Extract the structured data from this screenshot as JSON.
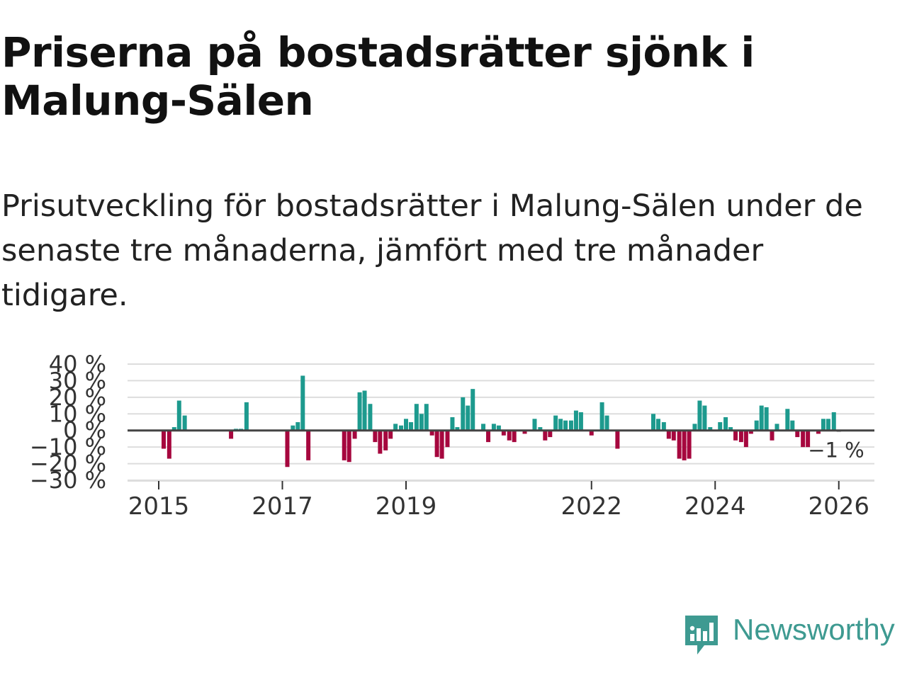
{
  "title": "Priserna på bostadsrätter sjönk i Malung-Sälen",
  "subtitle": "Prisutveckling för bostadsrätter i Malung-Sälen under de senaste tre månaderna, jämfört med tre månader tidigare.",
  "logo": {
    "text": "Newsworthy",
    "color": "#3e9a91"
  },
  "colors": {
    "positive": "#1d9a8e",
    "negative": "#a6073e",
    "grid": "#dddddd",
    "zero_line": "#444444"
  },
  "chart_data": {
    "type": "bar",
    "title": "Priserna på bostadsrätter sjönk i Malung-Sälen",
    "xlabel": "",
    "ylabel": "",
    "ylim": [
      -30,
      40
    ],
    "yticks": [
      40,
      30,
      20,
      10,
      0,
      -10,
      -20,
      -30
    ],
    "ytick_labels": [
      "40 %",
      "30 %",
      "20 %",
      "10 %",
      "0 %",
      "−10 %",
      "−20 %",
      "−30 %"
    ],
    "xticks": [
      2015,
      2017,
      2019,
      2022,
      2024,
      2026
    ],
    "xtick_labels": [
      "2015",
      "2017",
      "2019",
      "2022",
      "2024",
      "2026"
    ],
    "grid": true,
    "last_value_label": "−1 %",
    "series": [
      {
        "name": "Prisutveckling",
        "points": [
          {
            "x": 2015.08,
            "y": -11
          },
          {
            "x": 2015.17,
            "y": -17
          },
          {
            "x": 2015.25,
            "y": 2
          },
          {
            "x": 2015.33,
            "y": 18
          },
          {
            "x": 2015.42,
            "y": 9
          },
          {
            "x": 2016.17,
            "y": -5
          },
          {
            "x": 2016.25,
            "y": 1
          },
          {
            "x": 2016.33,
            "y": 1
          },
          {
            "x": 2016.42,
            "y": 17
          },
          {
            "x": 2017.08,
            "y": -22
          },
          {
            "x": 2017.17,
            "y": 3
          },
          {
            "x": 2017.25,
            "y": 5
          },
          {
            "x": 2017.33,
            "y": 33
          },
          {
            "x": 2017.42,
            "y": -18
          },
          {
            "x": 2018.0,
            "y": -18
          },
          {
            "x": 2018.08,
            "y": -19
          },
          {
            "x": 2018.17,
            "y": -5
          },
          {
            "x": 2018.25,
            "y": 23
          },
          {
            "x": 2018.33,
            "y": 24
          },
          {
            "x": 2018.42,
            "y": 16
          },
          {
            "x": 2018.5,
            "y": -7
          },
          {
            "x": 2018.58,
            "y": -14
          },
          {
            "x": 2018.67,
            "y": -12
          },
          {
            "x": 2018.75,
            "y": -5
          },
          {
            "x": 2018.83,
            "y": 4
          },
          {
            "x": 2018.92,
            "y": 3
          },
          {
            "x": 2019.0,
            "y": 7
          },
          {
            "x": 2019.08,
            "y": 5
          },
          {
            "x": 2019.17,
            "y": 16
          },
          {
            "x": 2019.25,
            "y": 10
          },
          {
            "x": 2019.33,
            "y": 16
          },
          {
            "x": 2019.42,
            "y": -3
          },
          {
            "x": 2019.5,
            "y": -16
          },
          {
            "x": 2019.58,
            "y": -17
          },
          {
            "x": 2019.67,
            "y": -10
          },
          {
            "x": 2019.75,
            "y": 8
          },
          {
            "x": 2019.83,
            "y": 2
          },
          {
            "x": 2019.92,
            "y": 20
          },
          {
            "x": 2020.0,
            "y": 15
          },
          {
            "x": 2020.08,
            "y": 25
          },
          {
            "x": 2020.25,
            "y": 4
          },
          {
            "x": 2020.33,
            "y": -7
          },
          {
            "x": 2020.42,
            "y": 4
          },
          {
            "x": 2020.5,
            "y": 3
          },
          {
            "x": 2020.58,
            "y": -3
          },
          {
            "x": 2020.67,
            "y": -6
          },
          {
            "x": 2020.75,
            "y": -7
          },
          {
            "x": 2020.92,
            "y": -2
          },
          {
            "x": 2021.08,
            "y": 7
          },
          {
            "x": 2021.17,
            "y": 2
          },
          {
            "x": 2021.25,
            "y": -6
          },
          {
            "x": 2021.33,
            "y": -4
          },
          {
            "x": 2021.42,
            "y": 9
          },
          {
            "x": 2021.5,
            "y": 7
          },
          {
            "x": 2021.58,
            "y": 6
          },
          {
            "x": 2021.67,
            "y": 6
          },
          {
            "x": 2021.75,
            "y": 12
          },
          {
            "x": 2021.83,
            "y": 11
          },
          {
            "x": 2022.0,
            "y": -3
          },
          {
            "x": 2022.17,
            "y": 17
          },
          {
            "x": 2022.25,
            "y": 9
          },
          {
            "x": 2022.42,
            "y": -11
          },
          {
            "x": 2023.0,
            "y": 10
          },
          {
            "x": 2023.08,
            "y": 7
          },
          {
            "x": 2023.17,
            "y": 5
          },
          {
            "x": 2023.25,
            "y": -5
          },
          {
            "x": 2023.33,
            "y": -6
          },
          {
            "x": 2023.42,
            "y": -17
          },
          {
            "x": 2023.5,
            "y": -18
          },
          {
            "x": 2023.58,
            "y": -17
          },
          {
            "x": 2023.67,
            "y": 4
          },
          {
            "x": 2023.75,
            "y": 18
          },
          {
            "x": 2023.83,
            "y": 15
          },
          {
            "x": 2023.92,
            "y": 2
          },
          {
            "x": 2024.08,
            "y": 5
          },
          {
            "x": 2024.17,
            "y": 8
          },
          {
            "x": 2024.25,
            "y": 2
          },
          {
            "x": 2024.33,
            "y": -6
          },
          {
            "x": 2024.42,
            "y": -7
          },
          {
            "x": 2024.5,
            "y": -10
          },
          {
            "x": 2024.58,
            "y": -2
          },
          {
            "x": 2024.67,
            "y": 6
          },
          {
            "x": 2024.75,
            "y": 15
          },
          {
            "x": 2024.83,
            "y": 14
          },
          {
            "x": 2024.92,
            "y": -6
          },
          {
            "x": 2025.0,
            "y": 4
          },
          {
            "x": 2025.17,
            "y": 13
          },
          {
            "x": 2025.25,
            "y": 6
          },
          {
            "x": 2025.33,
            "y": -4
          },
          {
            "x": 2025.42,
            "y": -10
          },
          {
            "x": 2025.5,
            "y": -10
          },
          {
            "x": 2025.67,
            "y": -2
          },
          {
            "x": 2025.75,
            "y": 7
          },
          {
            "x": 2025.83,
            "y": 7
          },
          {
            "x": 2025.92,
            "y": 11
          },
          {
            "x": 2026.0,
            "y": -1
          }
        ]
      }
    ]
  }
}
